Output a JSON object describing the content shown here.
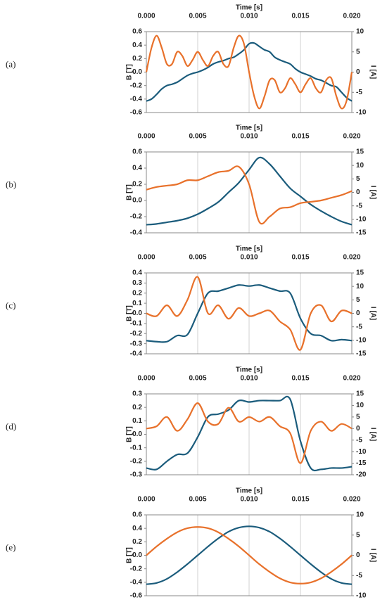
{
  "chart_data": [
    {
      "type": "line",
      "panel_label": "(a)",
      "xlabel": "Time [s]",
      "ylabel": "B [T]",
      "y2label": "I [A]",
      "x": [
        0,
        0.0005,
        0.001,
        0.0015,
        0.002,
        0.0025,
        0.003,
        0.0035,
        0.004,
        0.0045,
        0.005,
        0.0055,
        0.006,
        0.0065,
        0.007,
        0.0075,
        0.008,
        0.0085,
        0.009,
        0.0095,
        0.01,
        0.0105,
        0.011,
        0.0115,
        0.012,
        0.0125,
        0.013,
        0.0135,
        0.014,
        0.0145,
        0.015,
        0.0155,
        0.016,
        0.0165,
        0.017,
        0.0175,
        0.018,
        0.0185,
        0.019,
        0.0195,
        0.02
      ],
      "series": [
        {
          "name": "B",
          "color": "#1b5c7c",
          "axis": "y",
          "values": [
            -0.43,
            -0.4,
            -0.33,
            -0.25,
            -0.2,
            -0.18,
            -0.15,
            -0.1,
            -0.05,
            -0.02,
            0.0,
            0.03,
            0.07,
            0.12,
            0.15,
            0.17,
            0.2,
            0.22,
            0.27,
            0.33,
            0.42,
            0.43,
            0.38,
            0.33,
            0.3,
            0.22,
            0.18,
            0.15,
            0.12,
            0.05,
            0.0,
            -0.03,
            -0.06,
            -0.1,
            -0.12,
            -0.16,
            -0.2,
            -0.22,
            -0.3,
            -0.38,
            -0.43
          ]
        },
        {
          "name": "I",
          "color": "#e8712b",
          "axis": "y2",
          "values": [
            0,
            6,
            9,
            6,
            2,
            2,
            5,
            4,
            1.5,
            3,
            5,
            3,
            1.5,
            4,
            5,
            2,
            1.5,
            6,
            9,
            7,
            0,
            -6,
            -9,
            -6,
            -2,
            -2,
            -5,
            -4,
            -1.5,
            -3,
            -5,
            -3,
            -1.5,
            -4,
            -5,
            -2,
            -1.5,
            -6,
            -9,
            -7,
            0
          ]
        }
      ],
      "xlim": [
        0,
        0.02
      ],
      "xticks": [
        {
          "value": 0,
          "label": "0.000"
        },
        0.005,
        {
          "value": 0.01,
          "label": "0.010"
        },
        0.015,
        {
          "value": 0.02,
          "label": "0.020"
        }
      ],
      "ylim": [
        -0.6,
        0.6
      ],
      "yticks": [
        -0.6,
        -0.4,
        -0.2,
        {
          "value": 0,
          "label": "0.0"
        },
        0.2,
        0.4,
        0.6
      ],
      "y2lim": [
        -10,
        10
      ],
      "y2ticks": [
        -10,
        -5,
        0,
        5,
        10
      ],
      "grid": "x"
    },
    {
      "type": "line",
      "panel_label": "(b)",
      "xlabel": "Time [s]",
      "ylabel": "B [T]",
      "y2label": "I [A]",
      "x": [
        0,
        0.001,
        0.002,
        0.003,
        0.004,
        0.005,
        0.006,
        0.007,
        0.008,
        0.009,
        0.01,
        0.011,
        0.012,
        0.013,
        0.014,
        0.015,
        0.016,
        0.017,
        0.018,
        0.019,
        0.02
      ],
      "series": [
        {
          "name": "B",
          "color": "#1b5c7c",
          "axis": "y",
          "values": [
            -0.3,
            -0.29,
            -0.27,
            -0.25,
            -0.22,
            -0.17,
            -0.1,
            -0.02,
            0.1,
            0.22,
            0.38,
            0.53,
            0.45,
            0.3,
            0.15,
            0.05,
            -0.05,
            -0.13,
            -0.2,
            -0.26,
            -0.3
          ]
        },
        {
          "name": "I",
          "color": "#e8712b",
          "axis": "y2",
          "values": [
            1,
            2,
            2.5,
            3,
            4.5,
            4.5,
            6,
            7.5,
            8,
            9.5,
            3,
            -11,
            -9,
            -6,
            -5.5,
            -4,
            -3.5,
            -3,
            -2,
            -1,
            0.5
          ]
        }
      ],
      "xlim": [
        0,
        0.02
      ],
      "xticks": [
        {
          "value": 0,
          "label": "0.000"
        },
        0.005,
        {
          "value": 0.01,
          "label": "0.010"
        },
        0.015,
        {
          "value": 0.02,
          "label": "0.020"
        }
      ],
      "ylim": [
        -0.4,
        0.6
      ],
      "yticks": [
        -0.4,
        -0.2,
        {
          "value": 0,
          "label": "0.0"
        },
        0.2,
        0.4,
        0.6
      ],
      "y2lim": [
        -15,
        15
      ],
      "y2ticks": [
        -15,
        -10,
        -5,
        0,
        5,
        10,
        15
      ],
      "grid": "x"
    },
    {
      "type": "line",
      "panel_label": "(c)",
      "xlabel": "Time [s]",
      "ylabel": "B [T]",
      "y2label": "I [A]",
      "x": [
        0,
        0.001,
        0.002,
        0.003,
        0.004,
        0.005,
        0.006,
        0.007,
        0.008,
        0.009,
        0.01,
        0.011,
        0.012,
        0.013,
        0.014,
        0.015,
        0.016,
        0.017,
        0.018,
        0.019,
        0.02
      ],
      "series": [
        {
          "name": "B",
          "color": "#1b5c7c",
          "axis": "y",
          "values": [
            -0.27,
            -0.28,
            -0.28,
            -0.22,
            -0.21,
            0.0,
            0.2,
            0.22,
            0.25,
            0.28,
            0.27,
            0.28,
            0.25,
            0.22,
            0.2,
            -0.05,
            -0.2,
            -0.22,
            -0.27,
            -0.26,
            -0.27
          ]
        },
        {
          "name": "I",
          "color": "#e8712b",
          "axis": "y2",
          "values": [
            0,
            -1,
            3,
            -1,
            5,
            13.5,
            0,
            3,
            -2,
            2,
            -1,
            0,
            1,
            -3,
            -6,
            -13.5,
            0,
            3,
            -3,
            1,
            0
          ]
        }
      ],
      "xlim": [
        0,
        0.02
      ],
      "xticks": [
        {
          "value": 0,
          "label": "0.000"
        },
        0.005,
        {
          "value": 0.01,
          "label": "0.010"
        },
        0.015,
        {
          "value": 0.02,
          "label": "0.020"
        }
      ],
      "ylim": [
        -0.4,
        0.4
      ],
      "yticks": [
        -0.4,
        -0.3,
        -0.2,
        -0.1,
        {
          "value": 0,
          "label": "0.0"
        },
        0.1,
        0.2,
        0.3,
        0.4
      ],
      "y2lim": [
        -15,
        15
      ],
      "y2ticks": [
        -15,
        -10,
        -5,
        0,
        5,
        10,
        15
      ],
      "grid": "x"
    },
    {
      "type": "line",
      "panel_label": "(d)",
      "xlabel": "Time [s]",
      "ylabel": "B [T]",
      "y2label": "I [A]",
      "x": [
        0,
        0.001,
        0.002,
        0.003,
        0.004,
        0.005,
        0.006,
        0.007,
        0.008,
        0.009,
        0.01,
        0.011,
        0.012,
        0.013,
        0.014,
        0.015,
        0.016,
        0.017,
        0.018,
        0.019,
        0.02
      ],
      "series": [
        {
          "name": "B",
          "color": "#1b5c7c",
          "axis": "y",
          "values": [
            -0.25,
            -0.26,
            -0.2,
            -0.15,
            -0.14,
            -0.02,
            0.13,
            0.15,
            0.18,
            0.25,
            0.24,
            0.25,
            0.25,
            0.25,
            0.26,
            -0.05,
            -0.25,
            -0.26,
            -0.25,
            -0.25,
            -0.24
          ]
        },
        {
          "name": "I",
          "color": "#e8712b",
          "axis": "y2",
          "values": [
            0,
            1,
            5,
            -1,
            4,
            11,
            3,
            2,
            9,
            3,
            5,
            3,
            5,
            1,
            -2,
            -15,
            -1,
            3,
            -1,
            2,
            0
          ]
        }
      ],
      "xlim": [
        0,
        0.02
      ],
      "xticks": [
        {
          "value": 0,
          "label": "0.000"
        },
        0.005,
        {
          "value": 0.01,
          "label": "0.010"
        },
        0.015,
        {
          "value": 0.02,
          "label": "0.020"
        }
      ],
      "ylim": [
        -0.3,
        0.3
      ],
      "yticks": [
        -0.3,
        -0.2,
        -0.1,
        {
          "value": 0,
          "label": "0.0"
        },
        0.1,
        0.2,
        0.3
      ],
      "y2lim": [
        -20,
        15
      ],
      "y2ticks": [
        -20,
        -15,
        -10,
        -5,
        0,
        5,
        10,
        15
      ],
      "grid": "x"
    },
    {
      "type": "line",
      "panel_label": "(e)",
      "xlabel": "Time [s]",
      "ylabel": "B [T]",
      "y2label": "I [A]",
      "x": [
        0,
        0.001,
        0.002,
        0.003,
        0.004,
        0.005,
        0.006,
        0.007,
        0.008,
        0.009,
        0.01,
        0.011,
        0.012,
        0.013,
        0.014,
        0.015,
        0.016,
        0.017,
        0.018,
        0.019,
        0.02
      ],
      "series": [
        {
          "name": "B",
          "color": "#1b5c7c",
          "axis": "y",
          "values": [
            -0.43,
            -0.41,
            -0.35,
            -0.25,
            -0.13,
            0,
            0.13,
            0.25,
            0.35,
            0.41,
            0.43,
            0.41,
            0.35,
            0.25,
            0.13,
            0,
            -0.13,
            -0.25,
            -0.35,
            -0.41,
            -0.43
          ]
        },
        {
          "name": "I",
          "color": "#e8712b",
          "axis": "y2",
          "values": [
            0,
            2.2,
            4.1,
            5.7,
            6.7,
            7,
            6.7,
            5.7,
            4.1,
            2.2,
            0,
            -2.2,
            -4.1,
            -5.7,
            -6.7,
            -7,
            -6.7,
            -5.7,
            -4.1,
            -2.2,
            0
          ]
        }
      ],
      "xlim": [
        0,
        0.02
      ],
      "xticks": [
        {
          "value": 0,
          "label": "0.000"
        },
        0.005,
        {
          "value": 0.01,
          "label": "0.010"
        },
        0.015,
        {
          "value": 0.02,
          "label": "0.020"
        }
      ],
      "ylim": [
        -0.6,
        0.6
      ],
      "yticks": [
        -0.6,
        -0.4,
        -0.2,
        {
          "value": 0,
          "label": "0.0"
        },
        0.2,
        0.4,
        0.6
      ],
      "y2lim": [
        -10,
        10
      ],
      "y2ticks": [
        -10,
        -5,
        0,
        5,
        10
      ],
      "grid": "x"
    }
  ]
}
